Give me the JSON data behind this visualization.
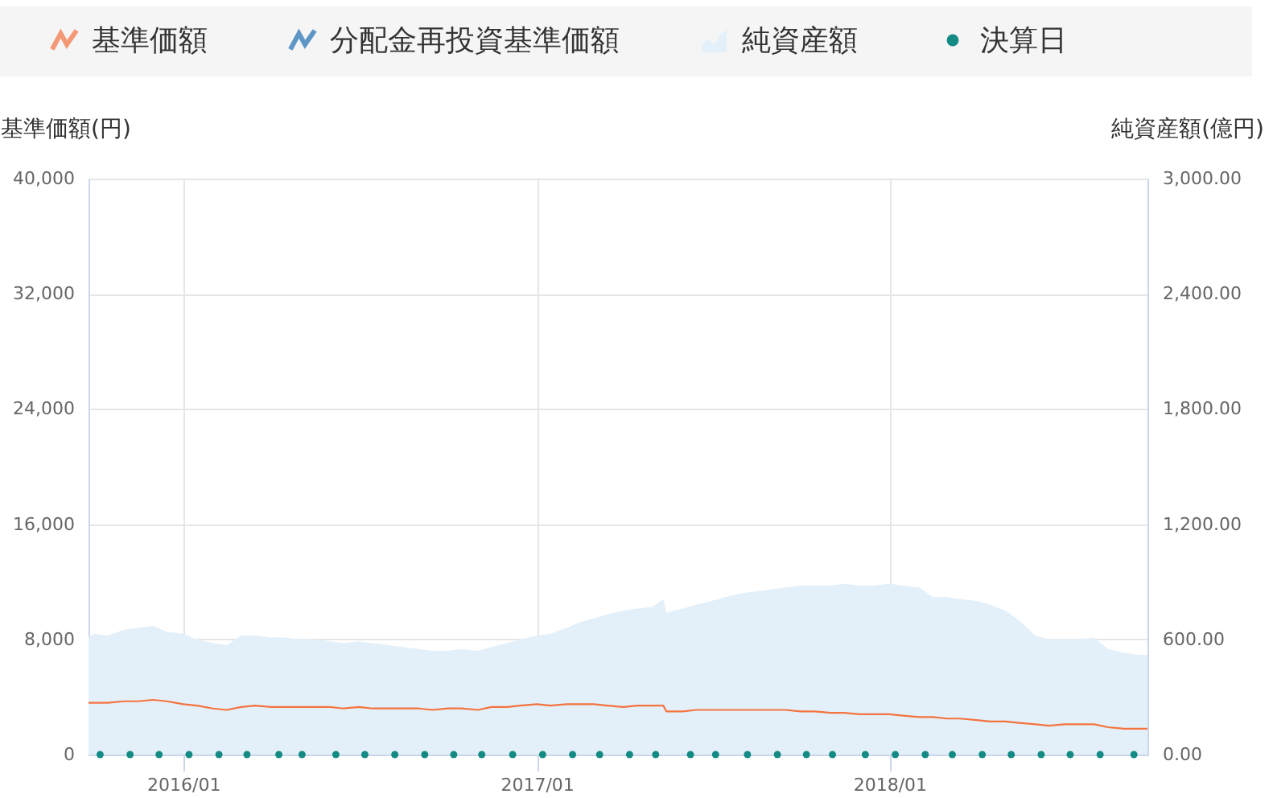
{
  "chart_data": {
    "type": "line",
    "legend": "top",
    "grid": true,
    "ylabel": "基準価額(円)",
    "y2label": "純資産額(億円)",
    "xlim": [
      "2015-09-25",
      "2018-09-25"
    ],
    "xticks": [
      {
        "value": "2016-01-01",
        "label": "2016/01"
      },
      {
        "value": "2017-01-01",
        "label": "2017/01"
      },
      {
        "value": "2018-01-01",
        "label": "2018/01"
      }
    ],
    "ylim": [
      0,
      40000
    ],
    "yticks": [
      0,
      {
        "value": 8000,
        "label": "8,000"
      },
      {
        "value": 16000,
        "label": "16,000"
      },
      {
        "value": 24000,
        "label": "24,000"
      },
      {
        "value": 32000,
        "label": "32,000"
      },
      {
        "value": 40000,
        "label": "40,000"
      }
    ],
    "y2lim": [
      0,
      3000
    ],
    "y2ticks": [
      {
        "value": 0,
        "label": "0.00"
      },
      {
        "value": 600,
        "label": "600.00"
      },
      {
        "value": 1200,
        "label": "1,200.00"
      },
      {
        "value": 1800,
        "label": "1,800.00"
      },
      {
        "value": 2400,
        "label": "2,400.00"
      },
      {
        "value": 3000,
        "label": "3,000.00"
      }
    ],
    "x": [
      "2015-09-25",
      "2015-10-01",
      "2015-10-15",
      "2015-11-01",
      "2015-11-15",
      "2015-12-01",
      "2015-12-15",
      "2016-01-01",
      "2016-01-15",
      "2016-02-01",
      "2016-02-15",
      "2016-03-01",
      "2016-03-15",
      "2016-04-01",
      "2016-04-15",
      "2016-05-01",
      "2016-05-15",
      "2016-06-01",
      "2016-06-15",
      "2016-07-01",
      "2016-07-15",
      "2016-08-01",
      "2016-08-15",
      "2016-09-01",
      "2016-09-15",
      "2016-10-01",
      "2016-10-15",
      "2016-11-01",
      "2016-11-15",
      "2016-12-01",
      "2016-12-15",
      "2017-01-01",
      "2017-01-15",
      "2017-02-01",
      "2017-02-15",
      "2017-03-01",
      "2017-03-15",
      "2017-04-01",
      "2017-04-15",
      "2017-05-01",
      "2017-05-12",
      "2017-05-15",
      "2017-06-01",
      "2017-06-15",
      "2017-07-01",
      "2017-07-15",
      "2017-08-01",
      "2017-08-15",
      "2017-09-01",
      "2017-09-15",
      "2017-10-01",
      "2017-10-15",
      "2017-11-01",
      "2017-11-15",
      "2017-12-01",
      "2017-12-15",
      "2018-01-01",
      "2018-01-15",
      "2018-02-01",
      "2018-02-15",
      "2018-03-01",
      "2018-03-15",
      "2018-04-01",
      "2018-04-15",
      "2018-05-01",
      "2018-05-15",
      "2018-06-01",
      "2018-06-15",
      "2018-07-01",
      "2018-07-15",
      "2018-08-01",
      "2018-08-15",
      "2018-09-01",
      "2018-09-15",
      "2018-09-25"
    ],
    "series": [
      {
        "name": "基準価額",
        "color": "#f4733f",
        "values": [
          3600,
          3600,
          3600,
          3700,
          3700,
          3800,
          3700,
          3500,
          3400,
          3200,
          3100,
          3300,
          3400,
          3300,
          3300,
          3300,
          3300,
          3300,
          3200,
          3300,
          3200,
          3200,
          3200,
          3200,
          3100,
          3200,
          3200,
          3100,
          3300,
          3300,
          3400,
          3500,
          3400,
          3500,
          3500,
          3500,
          3400,
          3300,
          3400,
          3400,
          3400,
          3000,
          3000,
          3100,
          3100,
          3100,
          3100,
          3100,
          3100,
          3100,
          3000,
          3000,
          2900,
          2900,
          2800,
          2800,
          2800,
          2700,
          2600,
          2600,
          2500,
          2500,
          2400,
          2300,
          2300,
          2200,
          2100,
          2000,
          2100,
          2100,
          2100,
          1900,
          1800,
          1800,
          1800
        ]
      },
      {
        "name": "分配金再投資基準価額",
        "color": "#1f6fb2",
        "values": [
          null,
          null,
          null,
          null,
          null,
          null,
          null,
          null,
          null,
          null,
          null,
          null,
          null,
          null,
          null,
          null,
          null,
          null,
          null,
          null,
          null,
          null,
          null,
          null,
          null,
          null,
          null,
          null,
          null,
          null,
          null,
          null,
          null,
          null,
          null,
          null,
          null,
          null,
          null,
          null,
          null,
          null,
          null,
          null,
          null,
          null,
          null,
          null,
          null,
          null,
          null,
          null,
          null,
          null,
          null,
          null,
          null,
          null,
          null,
          null,
          null,
          null,
          null,
          null,
          null,
          null,
          null,
          null,
          null,
          null,
          null,
          null,
          null,
          null,
          null
        ]
      },
      {
        "name": "純資産額",
        "type": "area",
        "axis": "y2",
        "color": "#e4f0f9",
        "values": [
          610,
          630,
          620,
          650,
          660,
          670,
          640,
          630,
          600,
          580,
          570,
          620,
          620,
          610,
          610,
          600,
          600,
          590,
          580,
          590,
          580,
          570,
          560,
          550,
          540,
          540,
          550,
          540,
          560,
          580,
          600,
          620,
          630,
          660,
          690,
          710,
          730,
          750,
          760,
          770,
          810,
          740,
          760,
          780,
          800,
          820,
          840,
          850,
          860,
          870,
          880,
          880,
          880,
          890,
          880,
          880,
          890,
          880,
          870,
          820,
          820,
          810,
          800,
          780,
          750,
          700,
          620,
          600,
          600,
          600,
          610,
          550,
          530,
          520,
          520
        ]
      },
      {
        "name": "決算日",
        "type": "scatter",
        "marker": "circle",
        "color": "#138a84",
        "x": [
          "2015-10-07",
          "2015-11-07",
          "2015-12-07",
          "2016-01-07",
          "2016-02-07",
          "2016-03-07",
          "2016-04-09",
          "2016-05-03",
          "2016-06-07",
          "2016-07-07",
          "2016-08-07",
          "2016-09-07",
          "2016-10-07",
          "2016-11-05",
          "2016-12-07",
          "2017-01-07",
          "2017-02-07",
          "2017-03-07",
          "2017-04-07",
          "2017-05-04",
          "2017-06-09",
          "2017-07-05",
          "2017-08-07",
          "2017-09-07",
          "2017-10-07",
          "2017-11-03",
          "2017-12-07",
          "2018-01-07",
          "2018-02-07",
          "2018-03-07",
          "2018-04-07",
          "2018-05-07",
          "2018-06-07",
          "2018-07-07",
          "2018-08-07",
          "2018-09-11"
        ],
        "values": [
          0,
          0,
          0,
          0,
          0,
          0,
          0,
          0,
          0,
          0,
          0,
          0,
          0,
          0,
          0,
          0,
          0,
          0,
          0,
          0,
          0,
          0,
          0,
          0,
          0,
          0,
          0,
          0,
          0,
          0,
          0,
          0,
          0,
          0,
          0,
          0
        ]
      }
    ]
  }
}
